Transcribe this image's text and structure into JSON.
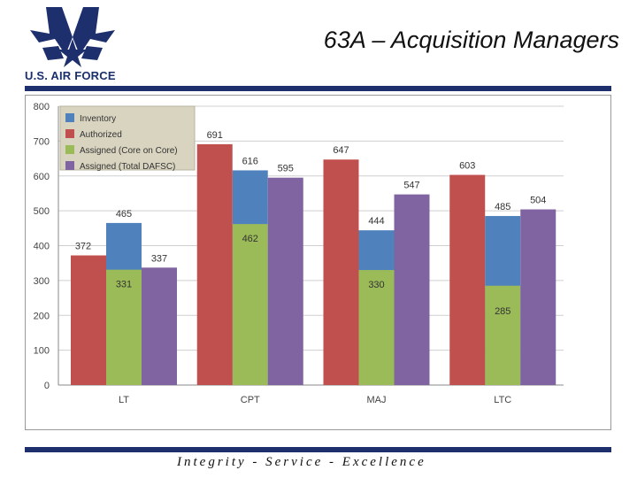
{
  "header": {
    "title": "63A – Acquisition Managers",
    "logo_text": "U.S. AIR FORCE"
  },
  "footer": {
    "motto": "Integrity - Service - Excellence"
  },
  "colors": {
    "inventory": "#4f81bd",
    "authorized": "#c0504d",
    "assigned_core": "#9bbb59",
    "assigned_total": "#8064a2",
    "brand": "#1e2f6e"
  },
  "chart_data": {
    "type": "bar",
    "categories": [
      "LT",
      "CPT",
      "MAJ",
      "LTC"
    ],
    "series": [
      {
        "name": "Inventory",
        "values": [
          465,
          616,
          444,
          485
        ],
        "layer": "front-center"
      },
      {
        "name": "Authorized",
        "values": [
          372,
          691,
          647,
          603
        ],
        "layer": "left"
      },
      {
        "name": "Assigned (Core on Core)",
        "values": [
          331,
          462,
          330,
          285
        ],
        "layer": "front-center"
      },
      {
        "name": "Assigned (Total DAFSC)",
        "values": [
          337,
          595,
          547,
          504
        ],
        "layer": "right"
      }
    ],
    "ylim": [
      0,
      800
    ],
    "yticks": [
      0,
      100,
      200,
      300,
      400,
      500,
      600,
      700,
      800
    ],
    "grid": true,
    "legend_position": "top-left"
  }
}
